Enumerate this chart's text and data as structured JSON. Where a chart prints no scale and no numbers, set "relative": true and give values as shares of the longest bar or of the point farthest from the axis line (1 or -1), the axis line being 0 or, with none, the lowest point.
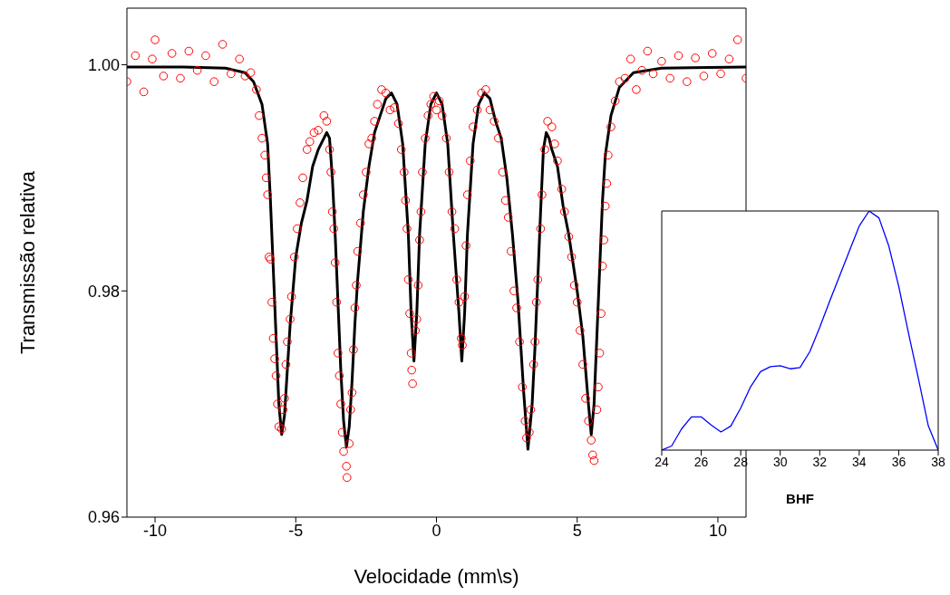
{
  "chart_data": [
    {
      "type": "scatter",
      "xlabel": "Velocidade (mm\\s)",
      "ylabel": "Transmissão relativa",
      "xlim": [
        -11,
        11
      ],
      "ylim": [
        0.96,
        1.005
      ],
      "xticks": [
        -10,
        -5,
        0,
        5,
        10
      ],
      "yticks": [
        0.96,
        0.98,
        {
          "value": 1,
          "label": "1.00"
        }
      ],
      "series": [
        {
          "type": "scatter",
          "marker": "circle",
          "color": "#ff0000",
          "x": [
            -11,
            -10.7,
            -10.4,
            -10.1,
            -10,
            -9.7,
            -9.4,
            -9.1,
            -8.8,
            -8.5,
            -8.2,
            -7.9,
            -7.6,
            -7.3,
            -7,
            -6.8,
            -6.6,
            -6.4,
            -6.3,
            -6.2,
            -6.1,
            -6.05,
            -6,
            -5.95,
            -5.9,
            -5.85,
            -5.8,
            -5.75,
            -5.7,
            -5.65,
            -5.6,
            -5.5,
            -5.45,
            -5.4,
            -5.35,
            -5.3,
            -5.2,
            -5.15,
            -5.05,
            -4.95,
            -4.85,
            -4.75,
            -4.6,
            -4.5,
            -4.35,
            -4.2,
            -4,
            -3.9,
            -3.8,
            -3.75,
            -3.7,
            -3.65,
            -3.6,
            -3.55,
            -3.5,
            -3.45,
            -3.4,
            -3.35,
            -3.3,
            -3.2,
            -3.18,
            -3.1,
            -3.05,
            -3,
            -2.95,
            -2.9,
            -2.85,
            -2.8,
            -2.7,
            -2.6,
            -2.5,
            -2.4,
            -2.3,
            -2.2,
            -2.1,
            -1.95,
            -1.8,
            -1.65,
            -1.5,
            -1.35,
            -1.25,
            -1.15,
            -1.1,
            -1.05,
            -1,
            -0.95,
            -0.9,
            -0.88,
            -0.85,
            -0.75,
            -0.7,
            -0.65,
            -0.6,
            -0.55,
            -0.5,
            -0.4,
            -0.3,
            -0.2,
            -0.1,
            0,
            0.1,
            0.2,
            0.35,
            0.45,
            0.55,
            0.65,
            0.72,
            0.8,
            0.88,
            0.92,
            1,
            1.05,
            1.1,
            1.2,
            1.3,
            1.45,
            1.6,
            1.75,
            1.9,
            2.05,
            2.2,
            2.35,
            2.45,
            2.55,
            2.65,
            2.75,
            2.85,
            2.95,
            3.05,
            3.15,
            3.2,
            3.3,
            3.35,
            3.45,
            3.5,
            3.55,
            3.6,
            3.7,
            3.75,
            3.85,
            3.95,
            4.1,
            4.2,
            4.3,
            4.45,
            4.55,
            4.7,
            4.8,
            4.9,
            5,
            5.1,
            5.2,
            5.3,
            5.4,
            5.5,
            5.55,
            5.6,
            5.7,
            5.75,
            5.8,
            5.85,
            5.9,
            5.95,
            6,
            6.05,
            6.1,
            6.2,
            6.35,
            6.5,
            6.7,
            6.9,
            7.1,
            7.3,
            7.5,
            7.7,
            8,
            8.3,
            8.6,
            8.9,
            9.2,
            9.5,
            9.8,
            10.1,
            10.4,
            10.7,
            11
          ],
          "values": [
            0.9985,
            1.0008,
            0.9976,
            1.0005,
            1.0022,
            0.999,
            1.001,
            0.9988,
            1.0012,
            0.9995,
            1.0008,
            0.9985,
            1.0018,
            0.9992,
            1.0005,
            0.999,
            0.9993,
            0.9978,
            0.9955,
            0.9935,
            0.992,
            0.99,
            0.9885,
            0.983,
            0.9828,
            0.979,
            0.9758,
            0.974,
            0.9725,
            0.97,
            0.968,
            0.9678,
            0.9695,
            0.9705,
            0.9735,
            0.9755,
            0.9775,
            0.9795,
            0.983,
            0.9855,
            0.9878,
            0.99,
            0.9925,
            0.9932,
            0.994,
            0.9942,
            0.9955,
            0.995,
            0.9925,
            0.9905,
            0.987,
            0.9855,
            0.9825,
            0.979,
            0.9745,
            0.9725,
            0.97,
            0.9675,
            0.9658,
            0.9645,
            0.9635,
            0.9665,
            0.9695,
            0.971,
            0.9748,
            0.9785,
            0.9805,
            0.9835,
            0.986,
            0.9885,
            0.9905,
            0.993,
            0.9935,
            0.995,
            0.9965,
            0.9978,
            0.9975,
            0.996,
            0.9962,
            0.9948,
            0.9925,
            0.9905,
            0.988,
            0.9855,
            0.981,
            0.978,
            0.9745,
            0.973,
            0.9718,
            0.9765,
            0.9775,
            0.9805,
            0.9845,
            0.987,
            0.9905,
            0.9935,
            0.9955,
            0.9965,
            0.9972,
            0.996,
            0.9968,
            0.9955,
            0.9935,
            0.9905,
            0.987,
            0.9855,
            0.981,
            0.979,
            0.9758,
            0.9752,
            0.9795,
            0.984,
            0.9885,
            0.9915,
            0.9945,
            0.996,
            0.9975,
            0.9978,
            0.996,
            0.995,
            0.9935,
            0.9905,
            0.988,
            0.9865,
            0.9835,
            0.98,
            0.9785,
            0.9755,
            0.9715,
            0.9685,
            0.967,
            0.9675,
            0.9695,
            0.9735,
            0.9755,
            0.979,
            0.981,
            0.9855,
            0.9885,
            0.9925,
            0.995,
            0.9945,
            0.993,
            0.9915,
            0.989,
            0.987,
            0.9848,
            0.983,
            0.9805,
            0.979,
            0.9765,
            0.9735,
            0.9705,
            0.9685,
            0.9668,
            0.9655,
            0.965,
            0.9695,
            0.9715,
            0.9745,
            0.978,
            0.9822,
            0.9845,
            0.9875,
            0.9895,
            0.992,
            0.9945,
            0.9968,
            0.9985,
            0.9988,
            1.0005,
            0.9978,
            0.9995,
            1.0012,
            0.9992,
            1.0003,
            0.9988,
            1.0008,
            0.9985,
            1.0006,
            0.999,
            1.001,
            0.9992,
            1.0005,
            1.0022,
            0.9988
          ]
        },
        {
          "type": "line",
          "marker": "none",
          "color": "#000000",
          "x": [
            -11,
            -9,
            -7.5,
            -6.8,
            -6.5,
            -6.2,
            -6,
            -5.9,
            -5.8,
            -5.7,
            -5.6,
            -5.5,
            -5.4,
            -5.3,
            -5.2,
            -5.1,
            -5,
            -4.8,
            -4.6,
            -4.4,
            -4.2,
            -4,
            -3.9,
            -3.8,
            -3.7,
            -3.6,
            -3.5,
            -3.4,
            -3.3,
            -3.2,
            -3.1,
            -3,
            -2.9,
            -2.8,
            -2.6,
            -2.4,
            -2.2,
            -2,
            -1.8,
            -1.6,
            -1.4,
            -1.2,
            -1,
            -0.9,
            -0.8,
            -0.7,
            -0.6,
            -0.4,
            -0.2,
            0,
            0.2,
            0.4,
            0.6,
            0.8,
            0.9,
            1,
            1.1,
            1.3,
            1.5,
            1.7,
            1.9,
            2.1,
            2.3,
            2.5,
            2.7,
            2.9,
            3.1,
            3.25,
            3.4,
            3.5,
            3.6,
            3.7,
            3.8,
            3.9,
            4,
            4.1,
            4.3,
            4.5,
            4.7,
            5,
            5.2,
            5.4,
            5.5,
            5.6,
            5.7,
            5.8,
            5.9,
            6,
            6.2,
            6.5,
            7,
            8,
            11
          ],
          "values": [
            0.9998,
            0.9998,
            0.9997,
            0.9993,
            0.9985,
            0.9965,
            0.993,
            0.988,
            0.982,
            0.976,
            0.97,
            0.9673,
            0.969,
            0.973,
            0.977,
            0.98,
            0.983,
            0.986,
            0.988,
            0.991,
            0.9925,
            0.9935,
            0.994,
            0.9935,
            0.99,
            0.985,
            0.979,
            0.973,
            0.9685,
            0.9662,
            0.968,
            0.972,
            0.977,
            0.981,
            0.987,
            0.991,
            0.994,
            0.9955,
            0.997,
            0.9975,
            0.9965,
            0.993,
            0.985,
            0.978,
            0.9738,
            0.978,
            0.985,
            0.993,
            0.9965,
            0.9975,
            0.9965,
            0.993,
            0.985,
            0.978,
            0.9738,
            0.978,
            0.985,
            0.993,
            0.9965,
            0.9975,
            0.997,
            0.995,
            0.9935,
            0.99,
            0.985,
            0.979,
            0.971,
            0.966,
            0.97,
            0.975,
            0.981,
            0.987,
            0.9925,
            0.994,
            0.9935,
            0.9925,
            0.991,
            0.9875,
            0.985,
            0.98,
            0.976,
            0.97,
            0.9673,
            0.97,
            0.976,
            0.982,
            0.988,
            0.992,
            0.9955,
            0.998,
            0.9993,
            0.9997,
            0.9998
          ]
        }
      ]
    },
    {
      "type": "line",
      "relative": true,
      "xlabel": "BHF",
      "xlim": [
        24,
        38
      ],
      "xticks": [
        24,
        26,
        28,
        30,
        32,
        34,
        36,
        38
      ],
      "tick_labels": "x",
      "color": "#0000ff",
      "x": [
        24,
        24.5,
        25,
        25.5,
        26,
        26.5,
        27,
        27.5,
        28,
        28.5,
        29,
        29.5,
        30,
        30.5,
        31,
        31.5,
        32,
        32.5,
        33,
        33.5,
        34,
        34.5,
        35,
        35.5,
        36,
        36.5,
        37,
        37.5,
        38
      ],
      "values": [
        0,
        0.017,
        0.088,
        0.139,
        0.139,
        0.105,
        0.076,
        0.101,
        0.176,
        0.265,
        0.328,
        0.349,
        0.353,
        0.34,
        0.345,
        0.412,
        0.513,
        0.622,
        0.727,
        0.832,
        0.937,
        1,
        0.971,
        0.853,
        0.685,
        0.487,
        0.298,
        0.101,
        0
      ]
    }
  ]
}
